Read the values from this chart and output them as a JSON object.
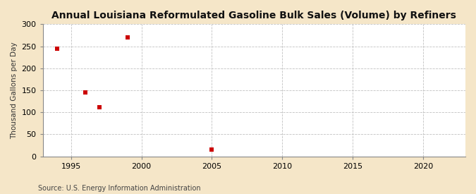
{
  "title": "Annual Louisiana Reformulated Gasoline Bulk Sales (Volume) by Refiners",
  "ylabel": "Thousand Gallons per Day",
  "source": "Source: U.S. Energy Information Administration",
  "x_data": [
    1994,
    1996,
    1997,
    1999,
    2005
  ],
  "y_data": [
    245,
    145,
    112,
    270,
    15
  ],
  "marker": "s",
  "marker_color": "#cc0000",
  "marker_size": 4,
  "xlim": [
    1993,
    2023
  ],
  "ylim": [
    0,
    300
  ],
  "xticks": [
    1995,
    2000,
    2005,
    2010,
    2015,
    2020
  ],
  "yticks": [
    0,
    50,
    100,
    150,
    200,
    250,
    300
  ],
  "fig_background_color": "#f5e6c8",
  "plot_background_color": "#ffffff",
  "grid_color": "#bbbbbb",
  "title_fontsize": 10,
  "label_fontsize": 7.5,
  "tick_fontsize": 8,
  "source_fontsize": 7
}
